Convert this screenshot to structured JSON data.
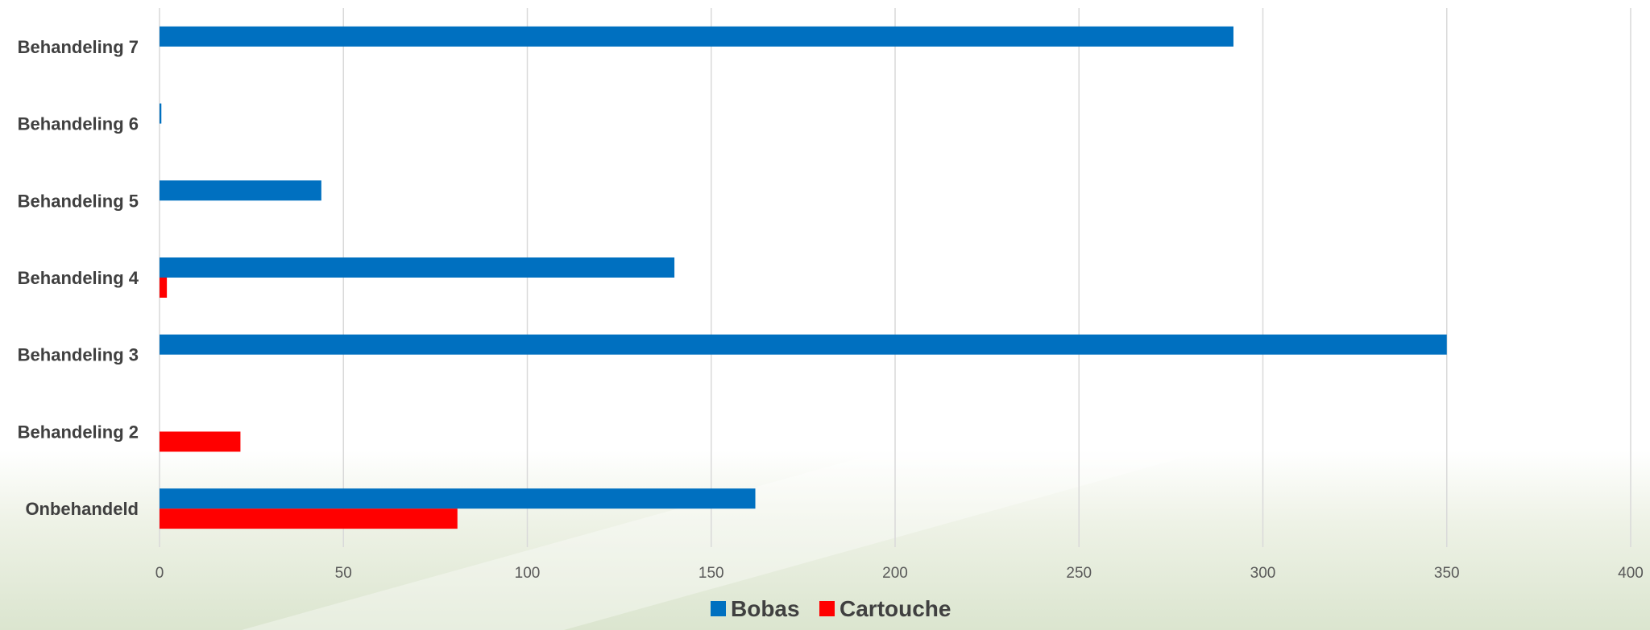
{
  "chart_data": {
    "type": "bar",
    "orientation": "horizontal",
    "categories": [
      "Onbehandeld",
      "Behandeling 2",
      "Behandeling 3",
      "Behandeling 4",
      "Behandeling 5",
      "Behandeling 6",
      "Behandeling 7"
    ],
    "series": [
      {
        "name": "Bobas",
        "color": "#0070C0",
        "values": [
          162,
          0,
          350,
          140,
          44,
          0.5,
          292
        ]
      },
      {
        "name": "Cartouche",
        "color": "#FF0000",
        "values": [
          81,
          22,
          0,
          2,
          0,
          0,
          0
        ]
      }
    ],
    "xlim": [
      0,
      400
    ],
    "xticks": [
      0,
      50,
      100,
      150,
      200,
      250,
      300,
      350,
      400
    ],
    "grid": true,
    "legend_position": "bottom",
    "title": "",
    "xlabel": "",
    "ylabel": ""
  }
}
